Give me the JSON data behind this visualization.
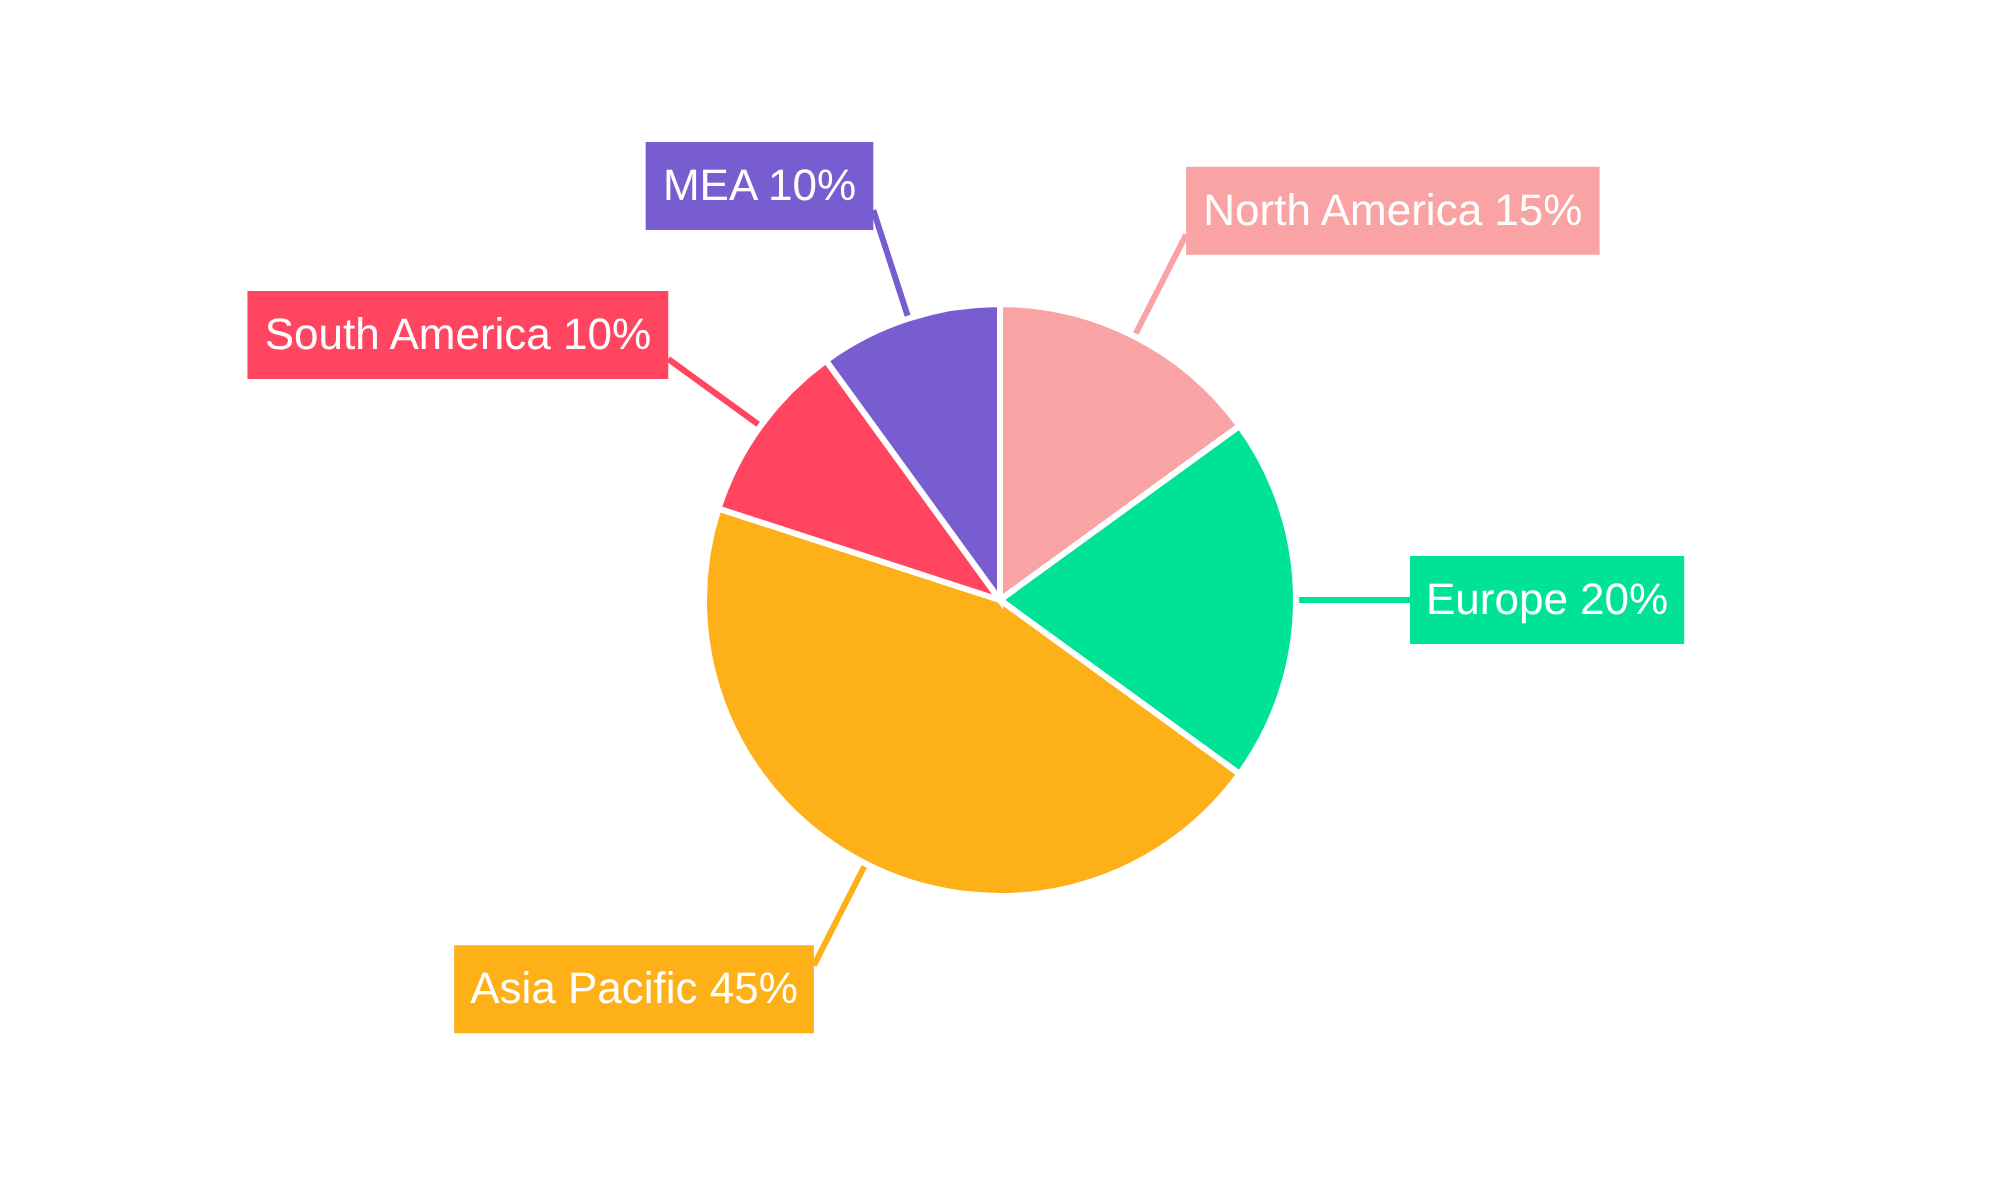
{
  "chart_data": {
    "type": "pie",
    "categories": [
      "North America",
      "Europe",
      "Asia Pacific",
      "South America",
      "MEA"
    ],
    "values": [
      15,
      20,
      45,
      10,
      10
    ],
    "value_labels": [
      "15%",
      "20%",
      "45%",
      "10%",
      "10%"
    ],
    "colors": [
      "#f9a3a4",
      "#00e396",
      "#feb019",
      "#ff4560",
      "#775dd0"
    ]
  }
}
